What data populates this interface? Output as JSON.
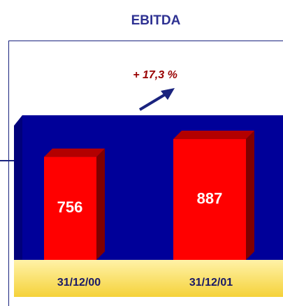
{
  "chart_data": {
    "type": "bar",
    "title": "EBITDA",
    "annotation": "+ 17,3 %",
    "categories": [
      "31/12/00",
      "31/12/01"
    ],
    "values": [
      756,
      887
    ],
    "color": "#ff0000"
  }
}
